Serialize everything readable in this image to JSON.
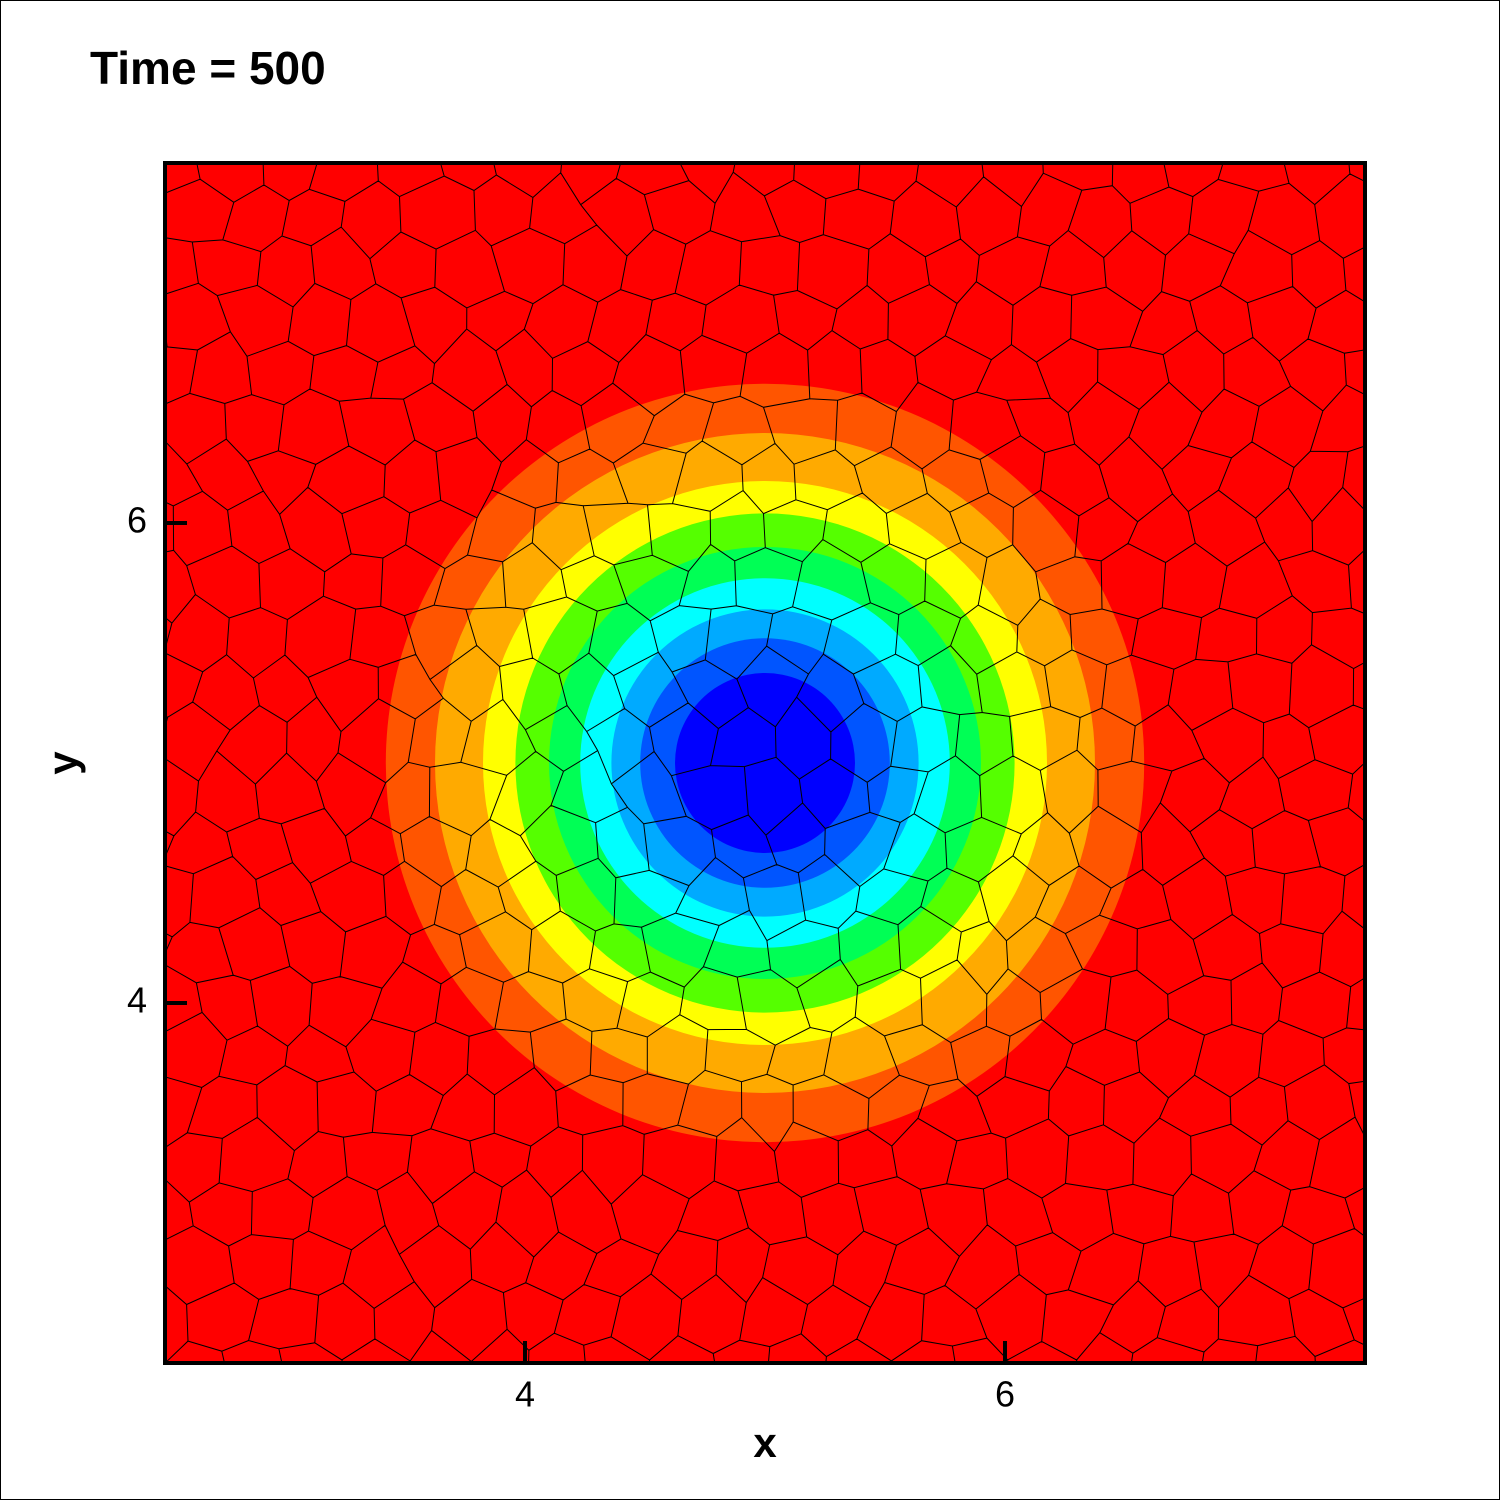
{
  "chart_data": {
    "type": "contour",
    "title": "Time = 500",
    "x_label": "x",
    "y_label": "y",
    "xlim": [
      2.5,
      7.5
    ],
    "ylim": [
      2.5,
      7.5
    ],
    "xticks": [
      4,
      6
    ],
    "yticks": [
      4,
      6
    ],
    "background_color": "#ff0000",
    "center_x": 5,
    "center_y": 5,
    "levels": [
      {
        "radius": 1.58,
        "color": "#ff5500"
      },
      {
        "radius": 1.375,
        "color": "#ffaa00"
      },
      {
        "radius": 1.175,
        "color": "#ffff00"
      },
      {
        "radius": 1.04,
        "color": "#55ff00"
      },
      {
        "radius": 0.9,
        "color": "#00ff55"
      },
      {
        "radius": 0.77,
        "color": "#00ffff"
      },
      {
        "radius": 0.64,
        "color": "#00aaff"
      },
      {
        "radius": 0.52,
        "color": "#0055ff"
      },
      {
        "radius": 0.375,
        "color": "#0000ff"
      }
    ]
  }
}
